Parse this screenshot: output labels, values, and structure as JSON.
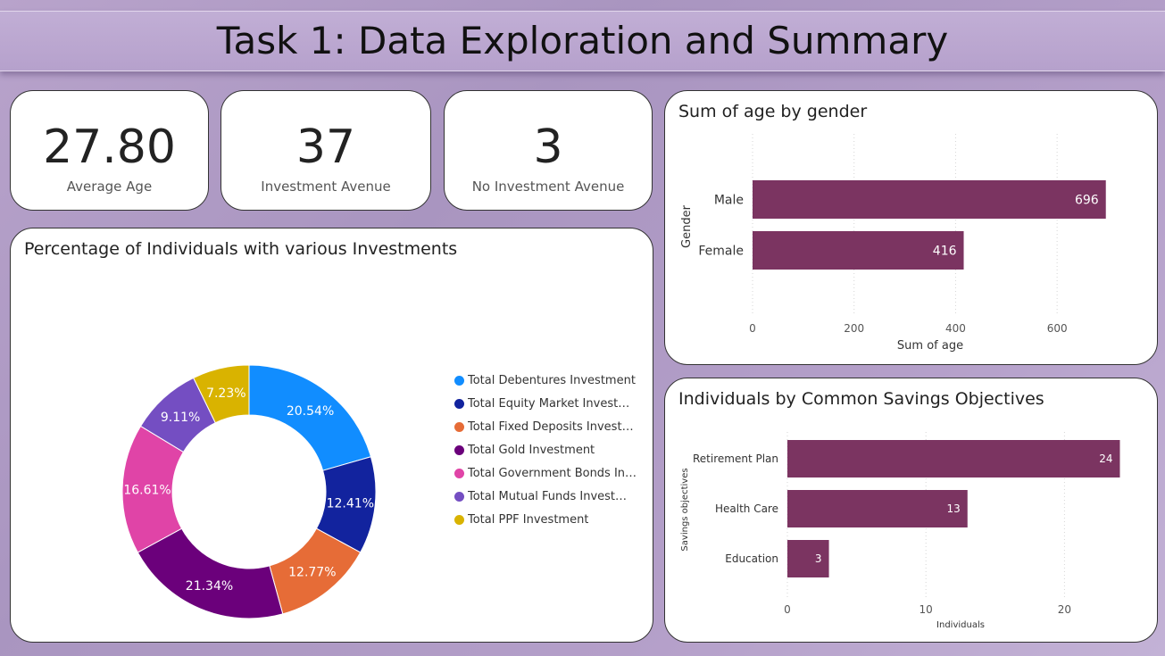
{
  "header": {
    "title": "Task 1: Data Exploration and Summary"
  },
  "kpis": [
    {
      "value": "27.80",
      "label": "Average Age"
    },
    {
      "value": "37",
      "label": "Investment Avenue"
    },
    {
      "value": "3",
      "label": "No Investment Avenue"
    }
  ],
  "donut": {
    "title": "Percentage of Individuals with various Investments",
    "colors": [
      "#118dff",
      "#12239e",
      "#e66c37",
      "#6b007b",
      "#e044a7",
      "#744ec2",
      "#d9b300"
    ],
    "chart_data": {
      "type": "pie",
      "labels": [
        "Total Debentures Investment",
        "Total Equity Market Investme...",
        "Total Fixed Deposits Investm...",
        "Total Gold Investment",
        "Total Government Bonds Inv...",
        "Total Mutual Funds Investme...",
        "Total PPF Investment"
      ],
      "values": [
        20.54,
        12.41,
        12.77,
        21.34,
        16.61,
        9.11,
        7.23
      ],
      "value_labels": [
        "20.54%",
        "12.41%",
        "12.77%",
        "21.34%",
        "16.61%",
        "9.11%",
        "7.23%"
      ],
      "legend_position": "right"
    }
  },
  "gender_chart": {
    "title": "Sum of age by gender",
    "bar_color": "#7b3461",
    "chart_data": {
      "type": "bar",
      "orientation": "horizontal",
      "categories": [
        "Male",
        "Female"
      ],
      "values": [
        696,
        416
      ],
      "value_labels": [
        "696",
        "416"
      ],
      "xlabel": "Sum of age",
      "ylabel": "Gender",
      "xlim": [
        0,
        700
      ],
      "xticks": [
        0,
        200,
        400,
        600
      ],
      "xtick_labels": [
        "0",
        "200",
        "400",
        "600"
      ],
      "grid": true
    }
  },
  "savings_chart": {
    "title": "Individuals by Common Savings Objectives",
    "bar_color": "#7b3461",
    "chart_data": {
      "type": "bar",
      "orientation": "horizontal",
      "categories": [
        "Retirement Plan",
        "Health Care",
        "Education"
      ],
      "values": [
        24,
        13,
        3
      ],
      "value_labels": [
        "24",
        "13",
        "3"
      ],
      "xlabel": "Individuals",
      "ylabel": "Savings objectives",
      "xlim": [
        0,
        25
      ],
      "xticks": [
        0,
        10,
        20
      ],
      "xtick_labels": [
        "0",
        "10",
        "20"
      ],
      "grid": true
    }
  }
}
